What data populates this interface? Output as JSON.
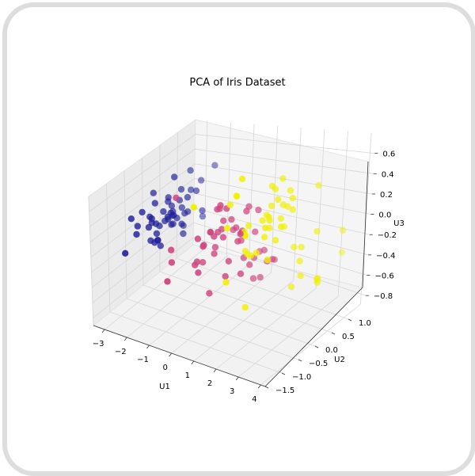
{
  "chart_data": {
    "type": "scatter",
    "title": "PCA of Iris Dataset",
    "xlabel": "U1",
    "ylabel": "U2",
    "zlabel": "U3",
    "xlim": [
      -3.5,
      4.2
    ],
    "ylim": [
      -1.5,
      1.5
    ],
    "zlim": [
      -0.9,
      0.8
    ],
    "xticks": [
      "−3",
      "−2",
      "−1",
      "0",
      "1",
      "2",
      "3",
      "4"
    ],
    "yticks": [
      "−1.5",
      "−1.0",
      "−0.5",
      "0.0",
      "0.5",
      "1.0"
    ],
    "zticks": [
      "−0.8",
      "−0.6",
      "−0.4",
      "−0.2",
      "0.0",
      "0.2",
      "0.4",
      "0.6"
    ],
    "grid": true,
    "colors": {
      "cluster_0": "#20209a",
      "cluster_1": "#d0457f",
      "cluster_2": "#f0f000"
    },
    "series": [
      {
        "values": [
          [
            -2.68,
            0.32,
            -0.03
          ],
          [
            -2.71,
            -0.18,
            -0.21
          ],
          [
            -2.89,
            -0.14,
            0.02
          ],
          [
            -2.75,
            -0.32,
            0.03
          ],
          [
            -2.73,
            0.33,
            0.09
          ],
          [
            -2.28,
            0.74,
            0.17
          ],
          [
            -2.82,
            -0.09,
            0.26
          ],
          [
            -2.63,
            0.16,
            -0.02
          ],
          [
            -2.89,
            -0.58,
            0.02
          ],
          [
            -2.67,
            -0.11,
            -0.2
          ],
          [
            -2.51,
            0.65,
            -0.08
          ],
          [
            -2.61,
            0.01,
            0.13
          ],
          [
            -2.79,
            -0.24,
            -0.17
          ],
          [
            -3.22,
            -0.51,
            0.18
          ],
          [
            -2.64,
            1.18,
            -0.33
          ],
          [
            -2.39,
            1.34,
            0.29
          ],
          [
            -2.62,
            0.81,
            0.14
          ],
          [
            -2.65,
            0.31,
            0.03
          ],
          [
            -2.2,
            0.87,
            -0.12
          ],
          [
            -2.59,
            0.51,
            0.25
          ],
          [
            -2.31,
            0.39,
            -0.26
          ],
          [
            -2.54,
            0.43,
            0.14
          ],
          [
            -3.22,
            0.13,
            0.3
          ],
          [
            -2.3,
            0.1,
            0.07
          ],
          [
            -2.36,
            -0.03,
            0.09
          ],
          [
            -2.51,
            -0.14,
            -0.25
          ],
          [
            -2.47,
            0.13,
            0.08
          ],
          [
            -2.56,
            0.37,
            -0.07
          ],
          [
            -2.64,
            0.31,
            -0.13
          ],
          [
            -2.63,
            -0.19,
            0.04
          ],
          [
            -2.59,
            -0.2,
            -0.08
          ],
          [
            -2.41,
            0.41,
            -0.15
          ],
          [
            -2.65,
            0.81,
            0.39
          ],
          [
            -2.6,
            1.09,
            0.17
          ],
          [
            -2.67,
            -0.12,
            -0.2
          ],
          [
            -2.87,
            0.07,
            -0.09
          ],
          [
            -2.62,
            0.6,
            -0.25
          ],
          [
            -2.8,
            0.27,
            0.16
          ],
          [
            -2.98,
            -0.49,
            0.09
          ],
          [
            -2.59,
            0.23,
            -0.11
          ],
          [
            -2.77,
            0.26,
            0.22
          ],
          [
            -2.85,
            -0.94,
            -0.1
          ],
          [
            -3.0,
            -0.34,
            0.22
          ],
          [
            -2.41,
            0.19,
            0.52
          ],
          [
            -2.21,
            0.44,
            0.19
          ],
          [
            -2.72,
            -0.25,
            0.12
          ],
          [
            -2.54,
            0.5,
            0.02
          ],
          [
            -2.84,
            -0.23,
            0.13
          ],
          [
            -2.54,
            0.58,
            -0.08
          ],
          [
            -2.7,
            0.11,
            -0.03
          ]
        ]
      },
      {
        "values": [
          [
            1.28,
            0.69,
            -0.41
          ],
          [
            0.93,
            0.32,
            -0.02
          ],
          [
            1.46,
            0.5,
            -0.34
          ],
          [
            0.18,
            -0.83,
            -0.18
          ],
          [
            1.09,
            0.07,
            -0.3
          ],
          [
            0.64,
            -0.42,
            0.12
          ],
          [
            1.1,
            0.28,
            0.24
          ],
          [
            -0.75,
            -1.0,
            0.08
          ],
          [
            1.04,
            0.23,
            -0.5
          ],
          [
            -0.01,
            -0.72,
            0.16
          ],
          [
            -0.51,
            -1.27,
            -0.19
          ],
          [
            0.51,
            -0.1,
            0.22
          ],
          [
            0.26,
            -0.55,
            -0.49
          ],
          [
            0.98,
            -0.12,
            0.1
          ],
          [
            -0.17,
            -0.25,
            0.09
          ],
          [
            0.93,
            0.47,
            -0.28
          ],
          [
            0.66,
            -0.35,
            0.42
          ],
          [
            0.23,
            -0.33,
            0.39
          ],
          [
            0.94,
            -0.54,
            -0.26
          ],
          [
            0.04,
            -0.58,
            0.05
          ],
          [
            1.12,
            -0.08,
            0.33
          ],
          [
            0.36,
            0.06,
            0.05
          ],
          [
            1.3,
            -0.33,
            -0.27
          ],
          [
            0.92,
            -0.18,
            0.02
          ],
          [
            0.71,
            0.15,
            -0.27
          ],
          [
            0.9,
            0.33,
            -0.31
          ],
          [
            1.33,
            0.24,
            -0.47
          ],
          [
            1.56,
            0.27,
            -0.29
          ],
          [
            0.81,
            -0.16,
            0.16
          ],
          [
            -0.31,
            -0.37,
            -0.23
          ],
          [
            -0.07,
            -0.7,
            -0.11
          ],
          [
            -0.19,
            -0.68,
            -0.16
          ],
          [
            0.14,
            -0.31,
            -0.05
          ],
          [
            1.38,
            -0.42,
            0.19
          ],
          [
            0.59,
            -0.48,
            0.49
          ],
          [
            0.81,
            0.2,
            0.29
          ],
          [
            1.22,
            0.41,
            -0.23
          ],
          [
            0.82,
            -0.37,
            -0.15
          ],
          [
            0.25,
            -0.27,
            0.38
          ],
          [
            0.16,
            -0.68,
            0.07
          ],
          [
            0.46,
            -0.67,
            0.24
          ],
          [
            0.89,
            -0.03,
            0.09
          ],
          [
            0.23,
            -0.4,
            -0.09
          ],
          [
            -0.71,
            -1.01,
            -0.06
          ],
          [
            0.36,
            -0.5,
            0.14
          ],
          [
            0.33,
            -0.21,
            0.23
          ],
          [
            0.38,
            -0.29,
            0.16
          ],
          [
            0.64,
            0.11,
            -0.07
          ],
          [
            -0.91,
            -0.75,
            0.61
          ],
          [
            0.3,
            -0.35,
            0.14
          ]
        ]
      },
      {
        "values": [
          [
            2.53,
            -0.01,
            0.2
          ],
          [
            1.41,
            -0.57,
            0.64
          ],
          [
            2.61,
            0.34,
            -0.1
          ],
          [
            1.97,
            -0.18,
            0.29
          ],
          [
            2.35,
            -0.04,
            0.06
          ],
          [
            3.4,
            0.55,
            -0.43
          ],
          [
            0.52,
            -1.19,
            0.67
          ],
          [
            2.93,
            0.35,
            -0.38
          ],
          [
            2.32,
            -0.24,
            -0.09
          ],
          [
            2.92,
            0.78,
            0.43
          ],
          [
            1.66,
            0.24,
            0.08
          ],
          [
            1.8,
            -0.22,
            -0.05
          ],
          [
            2.17,
            0.22,
            0.21
          ],
          [
            1.34,
            -0.78,
            0.35
          ],
          [
            1.59,
            -0.54,
            0.82
          ],
          [
            1.9,
            0.12,
            0.57
          ],
          [
            1.95,
            0.04,
            0.23
          ],
          [
            3.49,
            1.18,
            -0.11
          ],
          [
            3.8,
            0.26,
            -0.37
          ],
          [
            1.3,
            -0.76,
            -0.24
          ],
          [
            2.43,
            0.38,
            0.27
          ],
          [
            1.2,
            -0.61,
            0.55
          ],
          [
            3.5,
            0.46,
            -0.41
          ],
          [
            1.39,
            -0.2,
            -0.09
          ],
          [
            2.28,
            0.33,
            0.31
          ],
          [
            2.61,
            0.56,
            -0.16
          ],
          [
            1.26,
            -0.18,
            -0.07
          ],
          [
            1.29,
            -0.12,
            0.19
          ],
          [
            2.12,
            -0.21,
            0.13
          ],
          [
            2.39,
            0.46,
            -0.56
          ],
          [
            2.84,
            0.37,
            -0.24
          ],
          [
            3.23,
            1.37,
            -0.4
          ],
          [
            2.16,
            -0.22,
            0.23
          ],
          [
            1.44,
            -0.14,
            -0.12
          ],
          [
            1.78,
            -0.5,
            -0.55
          ],
          [
            3.08,
            0.69,
            -0.01
          ],
          [
            2.14,
            0.14,
            0.43
          ],
          [
            1.9,
            0.05,
            0.26
          ],
          [
            1.17,
            -0.16,
            0.13
          ],
          [
            2.11,
            0.37,
            0.08
          ],
          [
            2.31,
            0.18,
            0.37
          ],
          [
            1.92,
            0.41,
            0.57
          ],
          [
            1.41,
            -0.57,
            0.64
          ],
          [
            2.56,
            0.28,
            0.42
          ],
          [
            2.42,
            0.3,
            0.49
          ],
          [
            1.94,
            0.19,
            0.52
          ],
          [
            1.53,
            -0.38,
            0.17
          ],
          [
            1.76,
            0.08,
            0.27
          ],
          [
            1.9,
            0.12,
            0.36
          ],
          [
            1.39,
            -0.28,
            0.13
          ]
        ]
      }
    ]
  }
}
